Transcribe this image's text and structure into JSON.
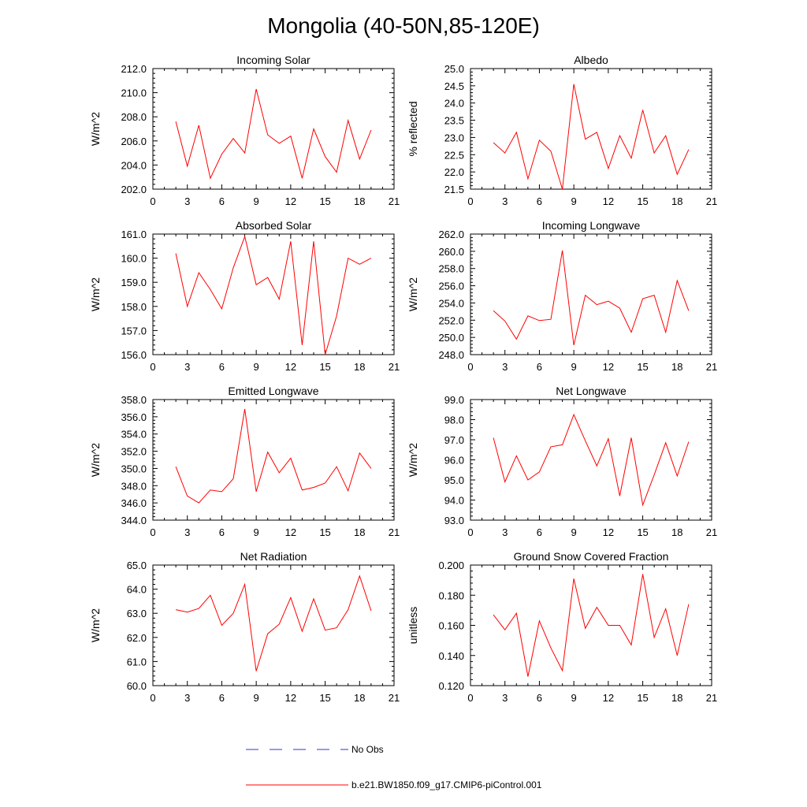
{
  "figure_title": "Mongolia (40-50N,85-120E)",
  "legend": {
    "obs_label": "No Obs",
    "model_label": "b.e21.BW1850.f09_g17.CMIP6-piControl.001",
    "obs_color": "#3333cc",
    "model_color": "#ff0000"
  },
  "chart_data": [
    {
      "type": "line",
      "title": "Incoming Solar",
      "xlabel": "",
      "ylabel": "W/m^2",
      "xlim": [
        0,
        21
      ],
      "ylim": [
        202,
        212
      ],
      "xticks": [
        "0",
        "3",
        "6",
        "9",
        "12",
        "15",
        "18",
        "21"
      ],
      "yticks": [
        "202.0",
        "204.0",
        "206.0",
        "208.0",
        "210.0",
        "212.0"
      ],
      "x": [
        2,
        3,
        4,
        5,
        6,
        7,
        8,
        9,
        10,
        11,
        12,
        13,
        14,
        15,
        16,
        17,
        18,
        19
      ],
      "series": [
        {
          "name": "b.e21.BW1850.f09_g17.CMIP6-piControl.001",
          "values": [
            207.6,
            203.9,
            207.3,
            202.9,
            204.9,
            206.2,
            205.0,
            210.3,
            206.5,
            205.8,
            206.4,
            202.9,
            207.0,
            204.7,
            203.4,
            207.7,
            204.5,
            206.9
          ]
        }
      ]
    },
    {
      "type": "line",
      "title": "Albedo",
      "xlabel": "",
      "ylabel": "% reflected",
      "xlim": [
        0,
        21
      ],
      "ylim": [
        21.5,
        25.0
      ],
      "xticks": [
        "0",
        "3",
        "6",
        "9",
        "12",
        "15",
        "18",
        "21"
      ],
      "yticks": [
        "21.5",
        "22.0",
        "22.5",
        "23.0",
        "23.5",
        "24.0",
        "24.5",
        "25.0"
      ],
      "x": [
        2,
        3,
        4,
        5,
        6,
        7,
        8,
        9,
        10,
        11,
        12,
        13,
        14,
        15,
        16,
        17,
        18,
        19
      ],
      "series": [
        {
          "name": "b.e21.BW1850.f09_g17.CMIP6-piControl.001",
          "values": [
            22.85,
            22.55,
            23.15,
            21.8,
            22.92,
            22.6,
            21.5,
            24.55,
            22.95,
            23.15,
            22.1,
            23.05,
            22.4,
            23.8,
            22.55,
            23.05,
            21.93,
            22.65
          ]
        }
      ]
    },
    {
      "type": "line",
      "title": "Absorbed Solar",
      "xlabel": "",
      "ylabel": "W/m^2",
      "xlim": [
        0,
        21
      ],
      "ylim": [
        156,
        161
      ],
      "xticks": [
        "0",
        "3",
        "6",
        "9",
        "12",
        "15",
        "18",
        "21"
      ],
      "yticks": [
        "156.0",
        "157.0",
        "158.0",
        "159.0",
        "160.0",
        "161.0"
      ],
      "x": [
        2,
        3,
        4,
        5,
        6,
        7,
        8,
        9,
        10,
        11,
        12,
        13,
        14,
        15,
        16,
        17,
        18,
        19
      ],
      "series": [
        {
          "name": "b.e21.BW1850.f09_g17.CMIP6-piControl.001",
          "values": [
            160.2,
            158.0,
            159.4,
            158.7,
            157.9,
            159.6,
            160.9,
            158.9,
            159.2,
            158.3,
            160.7,
            156.4,
            160.7,
            156.0,
            157.6,
            160.0,
            159.75,
            160.0
          ]
        }
      ]
    },
    {
      "type": "line",
      "title": "Incoming Longwave",
      "xlabel": "",
      "ylabel": "W/m^2",
      "xlim": [
        0,
        21
      ],
      "ylim": [
        248,
        262
      ],
      "xticks": [
        "0",
        "3",
        "6",
        "9",
        "12",
        "15",
        "18",
        "21"
      ],
      "yticks": [
        "248.0",
        "250.0",
        "252.0",
        "254.0",
        "256.0",
        "258.0",
        "260.0",
        "262.0"
      ],
      "x": [
        2,
        3,
        4,
        5,
        6,
        7,
        8,
        9,
        10,
        11,
        12,
        13,
        14,
        15,
        16,
        17,
        18,
        19
      ],
      "series": [
        {
          "name": "b.e21.BW1850.f09_g17.CMIP6-piControl.001",
          "values": [
            253.1,
            251.9,
            249.8,
            252.5,
            251.95,
            252.1,
            260.1,
            249.1,
            254.9,
            253.8,
            254.2,
            253.4,
            250.6,
            254.5,
            254.9,
            250.6,
            256.6,
            253.1
          ]
        }
      ]
    },
    {
      "type": "line",
      "title": "Emitted Longwave",
      "xlabel": "",
      "ylabel": "W/m^2",
      "xlim": [
        0,
        21
      ],
      "ylim": [
        344,
        358
      ],
      "xticks": [
        "0",
        "3",
        "6",
        "9",
        "12",
        "15",
        "18",
        "21"
      ],
      "yticks": [
        "344.0",
        "346.0",
        "348.0",
        "350.0",
        "352.0",
        "354.0",
        "356.0",
        "358.0"
      ],
      "x": [
        2,
        3,
        4,
        5,
        6,
        7,
        8,
        9,
        10,
        11,
        12,
        13,
        14,
        15,
        16,
        17,
        18,
        19
      ],
      "series": [
        {
          "name": "b.e21.BW1850.f09_g17.CMIP6-piControl.001",
          "values": [
            350.2,
            346.8,
            346.0,
            347.5,
            347.3,
            348.8,
            356.9,
            347.3,
            351.9,
            349.5,
            351.2,
            347.5,
            347.8,
            348.3,
            350.2,
            347.4,
            351.8,
            350.0
          ]
        }
      ]
    },
    {
      "type": "line",
      "title": "Net Longwave",
      "xlabel": "",
      "ylabel": "W/m^2",
      "xlim": [
        0,
        21
      ],
      "ylim": [
        93,
        99
      ],
      "xticks": [
        "0",
        "3",
        "6",
        "9",
        "12",
        "15",
        "18",
        "21"
      ],
      "yticks": [
        "93.0",
        "94.0",
        "95.0",
        "96.0",
        "97.0",
        "98.0",
        "99.0"
      ],
      "x": [
        2,
        3,
        4,
        5,
        6,
        7,
        8,
        9,
        10,
        11,
        12,
        13,
        14,
        15,
        16,
        17,
        18,
        19
      ],
      "series": [
        {
          "name": "b.e21.BW1850.f09_g17.CMIP6-piControl.001",
          "values": [
            97.1,
            94.9,
            96.2,
            95.0,
            95.4,
            96.65,
            96.75,
            98.25,
            96.95,
            95.7,
            97.05,
            94.2,
            97.1,
            93.75,
            95.25,
            96.85,
            95.2,
            96.9
          ]
        }
      ]
    },
    {
      "type": "line",
      "title": "Net Radiation",
      "xlabel": "",
      "ylabel": "W/m^2",
      "xlim": [
        0,
        21
      ],
      "ylim": [
        60,
        65
      ],
      "xticks": [
        "0",
        "3",
        "6",
        "9",
        "12",
        "15",
        "18",
        "21"
      ],
      "yticks": [
        "60.0",
        "61.0",
        "62.0",
        "63.0",
        "64.0",
        "65.0"
      ],
      "x": [
        2,
        3,
        4,
        5,
        6,
        7,
        8,
        9,
        10,
        11,
        12,
        13,
        14,
        15,
        16,
        17,
        18,
        19
      ],
      "series": [
        {
          "name": "b.e21.BW1850.f09_g17.CMIP6-piControl.001",
          "values": [
            63.15,
            63.05,
            63.2,
            63.75,
            62.5,
            63.0,
            64.2,
            60.6,
            62.15,
            62.55,
            63.65,
            62.25,
            63.6,
            62.3,
            62.4,
            63.15,
            64.55,
            63.1
          ]
        }
      ]
    },
    {
      "type": "line",
      "title": "Ground Snow Covered Fraction",
      "xlabel": "",
      "ylabel": "unitless",
      "xlim": [
        0,
        21
      ],
      "ylim": [
        0.12,
        0.2
      ],
      "xticks": [
        "0",
        "3",
        "6",
        "9",
        "12",
        "15",
        "18",
        "21"
      ],
      "yticks": [
        "0.120",
        "0.140",
        "0.160",
        "0.180",
        "0.200"
      ],
      "x": [
        2,
        3,
        4,
        5,
        6,
        7,
        8,
        9,
        10,
        11,
        12,
        13,
        14,
        15,
        16,
        17,
        18,
        19
      ],
      "series": [
        {
          "name": "b.e21.BW1850.f09_g17.CMIP6-piControl.001",
          "values": [
            0.167,
            0.157,
            0.168,
            0.126,
            0.163,
            0.145,
            0.13,
            0.191,
            0.158,
            0.172,
            0.16,
            0.16,
            0.147,
            0.194,
            0.152,
            0.171,
            0.14,
            0.174
          ]
        }
      ]
    }
  ]
}
